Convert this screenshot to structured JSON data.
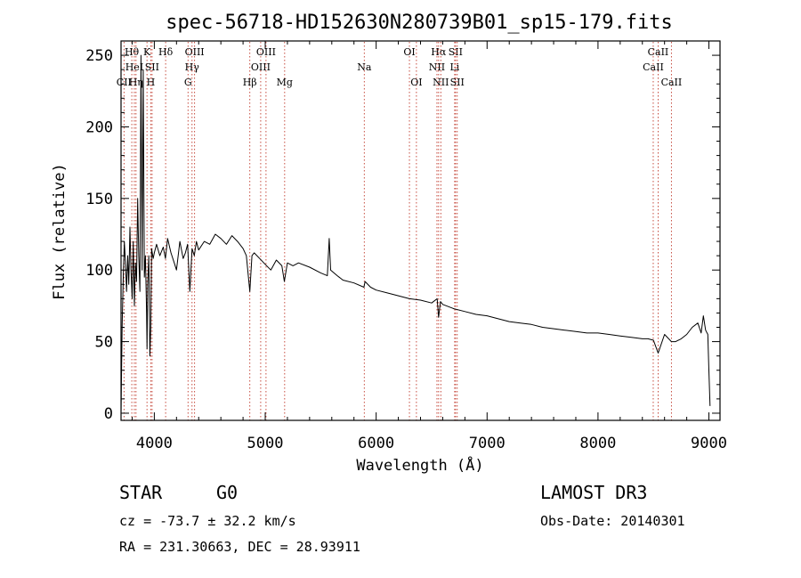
{
  "chart_data": {
    "type": "line",
    "title": "spec-56718-HD152630N280739B01_sp15-179.fits",
    "xlabel": "Wavelength (Å)",
    "ylabel": "Flux (relative)",
    "xlim": [
      3700,
      9100
    ],
    "ylim": [
      -5,
      260
    ],
    "xticks": [
      4000,
      5000,
      6000,
      7000,
      8000,
      9000
    ],
    "yticks": [
      0,
      50,
      100,
      150,
      200,
      250
    ],
    "grid": false,
    "series": [
      {
        "name": "flux",
        "color": "#000000",
        "x": [
          3700,
          3710,
          3720,
          3730,
          3740,
          3750,
          3760,
          3770,
          3780,
          3790,
          3800,
          3810,
          3820,
          3830,
          3840,
          3850,
          3860,
          3870,
          3880,
          3890,
          3900,
          3910,
          3920,
          3930,
          3934,
          3940,
          3950,
          3960,
          3968,
          3975,
          3990,
          4000,
          4020,
          4050,
          4080,
          4100,
          4120,
          4150,
          4180,
          4200,
          4230,
          4260,
          4280,
          4300,
          4320,
          4340,
          4360,
          4380,
          4400,
          4450,
          4500,
          4550,
          4600,
          4650,
          4700,
          4750,
          4800,
          4830,
          4861,
          4880,
          4900,
          4950,
          5000,
          5050,
          5100,
          5150,
          5172,
          5200,
          5250,
          5300,
          5400,
          5500,
          5560,
          5577,
          5590,
          5650,
          5700,
          5800,
          5890,
          5900,
          5950,
          6000,
          6100,
          6200,
          6300,
          6400,
          6500,
          6550,
          6563,
          6580,
          6600,
          6700,
          6800,
          6900,
          7000,
          7100,
          7200,
          7300,
          7400,
          7500,
          7600,
          7700,
          7800,
          7900,
          8000,
          8100,
          8200,
          8300,
          8400,
          8450,
          8500,
          8542,
          8600,
          8662,
          8700,
          8750,
          8800,
          8850,
          8900,
          8930,
          8950,
          8970,
          8990,
          9000,
          9010
        ],
        "y": [
          0,
          60,
          95,
          120,
          105,
          85,
          110,
          90,
          130,
          100,
          80,
          120,
          75,
          105,
          92,
          150,
          110,
          85,
          250,
          100,
          240,
          95,
          110,
          70,
          45,
          90,
          110,
          40,
          60,
          115,
          108,
          112,
          118,
          110,
          116,
          108,
          122,
          112,
          105,
          100,
          120,
          108,
          112,
          118,
          85,
          115,
          110,
          120,
          114,
          120,
          118,
          125,
          122,
          118,
          124,
          120,
          115,
          110,
          85,
          110,
          112,
          108,
          104,
          100,
          107,
          103,
          92,
          105,
          103,
          105,
          102,
          98,
          96,
          122,
          100,
          96,
          93,
          91,
          88,
          92,
          88,
          86,
          84,
          82,
          80,
          79,
          77,
          80,
          67,
          78,
          76,
          73,
          71,
          69,
          68,
          66,
          64,
          63,
          62,
          60,
          59,
          58,
          57,
          56,
          56,
          55,
          54,
          53,
          52,
          52,
          51,
          42,
          55,
          50,
          50,
          52,
          55,
          60,
          63,
          56,
          68,
          58,
          55,
          30,
          5
        ]
      }
    ],
    "lines": [
      {
        "label": "CII",
        "x": 3727,
        "row": 2
      },
      {
        "label": "Hθ",
        "x": 3797,
        "row": 0
      },
      {
        "label": "HeI",
        "x": 3820,
        "row": 1
      },
      {
        "label": "Hη",
        "x": 3835,
        "row": 2
      },
      {
        "label": "K",
        "x": 3934,
        "row": 0
      },
      {
        "label": "SII",
        "x": 3980,
        "row": 1
      },
      {
        "label": "H",
        "x": 3968,
        "row": 2
      },
      {
        "label": "Hδ",
        "x": 4102,
        "row": 0
      },
      {
        "label": "OIII",
        "x": 4363,
        "row": 0
      },
      {
        "label": "Hγ",
        "x": 4340,
        "row": 1
      },
      {
        "label": "G",
        "x": 4304,
        "row": 2
      },
      {
        "label": "Hβ",
        "x": 4861,
        "row": 2
      },
      {
        "label": "OIII",
        "x": 4959,
        "row": 1
      },
      {
        "label": "OIII",
        "x": 5007,
        "row": 0
      },
      {
        "label": "Mg",
        "x": 5175,
        "row": 2
      },
      {
        "label": "Na",
        "x": 5893,
        "row": 1
      },
      {
        "label": "OI",
        "x": 6300,
        "row": 0
      },
      {
        "label": "OI",
        "x": 6363,
        "row": 2
      },
      {
        "label": "Hα",
        "x": 6563,
        "row": 0
      },
      {
        "label": "NII",
        "x": 6548,
        "row": 1
      },
      {
        "label": "NII",
        "x": 6583,
        "row": 2
      },
      {
        "label": "SII",
        "x": 6716,
        "row": 0
      },
      {
        "label": "Li",
        "x": 6708,
        "row": 1
      },
      {
        "label": "SII",
        "x": 6731,
        "row": 2
      },
      {
        "label": "CaII",
        "x": 8542,
        "row": 0
      },
      {
        "label": "CaII",
        "x": 8498,
        "row": 1
      },
      {
        "label": "CaII",
        "x": 8662,
        "row": 2
      }
    ]
  },
  "info": {
    "class": "STAR",
    "subclass": "G0",
    "survey": "LAMOST DR3",
    "redshift": "cz = -73.7 ± 32.2 km/s",
    "obsdate": "Obs-Date: 20140301",
    "coords": "RA = 231.30663, DEC =  28.93911"
  }
}
